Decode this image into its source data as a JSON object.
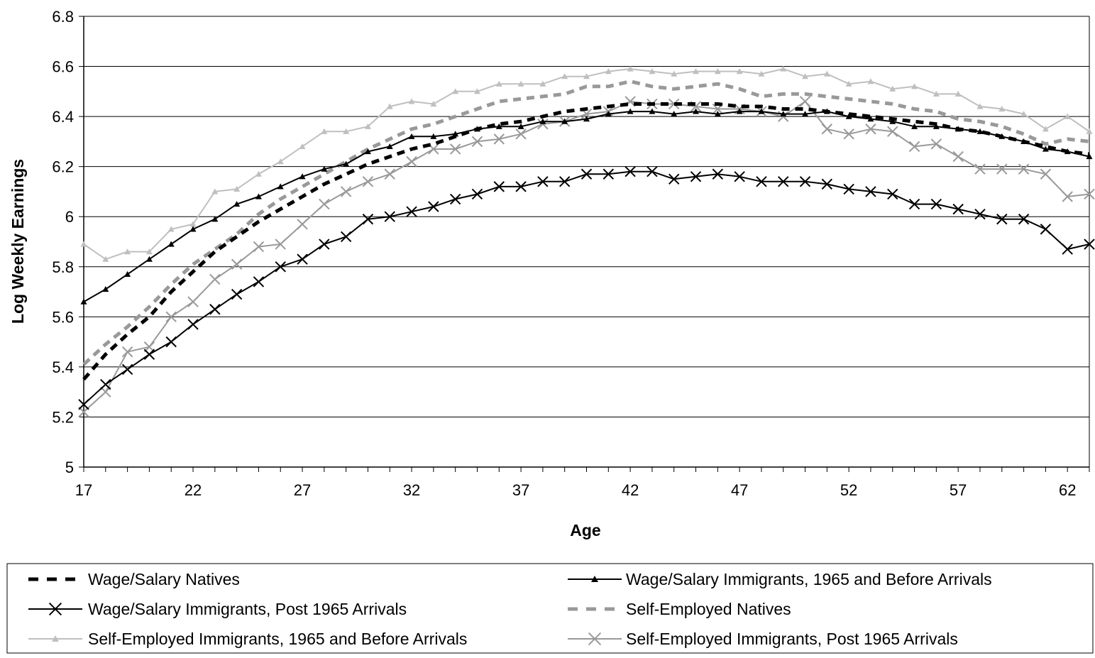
{
  "chart_data": {
    "type": "line",
    "xlabel": "Age",
    "ylabel": "Log Weekly Earnings",
    "xlim": [
      17,
      63
    ],
    "ylim": [
      5,
      6.8
    ],
    "x_ticks": [
      "17",
      "22",
      "27",
      "32",
      "37",
      "42",
      "47",
      "52",
      "57",
      "62"
    ],
    "y_ticks": [
      "5",
      "5.2",
      "5.4",
      "5.6",
      "5.8",
      "6",
      "6.2",
      "6.4",
      "6.6",
      "6.8"
    ],
    "grid": "horizontal",
    "legend": "bottom",
    "x": [
      17,
      18,
      19,
      20,
      21,
      22,
      23,
      24,
      25,
      26,
      27,
      28,
      29,
      30,
      31,
      32,
      33,
      34,
      35,
      36,
      37,
      38,
      39,
      40,
      41,
      42,
      43,
      44,
      45,
      46,
      47,
      48,
      49,
      50,
      51,
      52,
      53,
      54,
      55,
      56,
      57,
      58,
      59,
      60,
      61,
      62,
      63
    ],
    "series": [
      {
        "name": "Wage/Salary Natives",
        "color": "#000000",
        "style": "dashed-bold",
        "marker": "none",
        "values": [
          5.35,
          5.45,
          5.53,
          5.6,
          5.7,
          5.78,
          5.86,
          5.92,
          5.98,
          6.03,
          6.08,
          6.13,
          6.17,
          6.21,
          6.24,
          6.27,
          6.29,
          6.32,
          6.35,
          6.37,
          6.38,
          6.4,
          6.42,
          6.43,
          6.44,
          6.45,
          6.45,
          6.45,
          6.45,
          6.45,
          6.44,
          6.44,
          6.43,
          6.43,
          6.42,
          6.41,
          6.4,
          6.39,
          6.38,
          6.37,
          6.35,
          6.34,
          6.32,
          6.3,
          6.28,
          6.26,
          6.25
        ]
      },
      {
        "name": "Wage/Salary Immigrants, 1965 and Before Arrivals",
        "color": "#000000",
        "style": "solid",
        "marker": "triangle",
        "values": [
          5.66,
          5.71,
          5.77,
          5.83,
          5.89,
          5.95,
          5.99,
          6.05,
          6.08,
          6.12,
          6.16,
          6.19,
          6.21,
          6.26,
          6.28,
          6.32,
          6.32,
          6.33,
          6.35,
          6.36,
          6.36,
          6.38,
          6.38,
          6.39,
          6.41,
          6.42,
          6.42,
          6.41,
          6.42,
          6.41,
          6.42,
          6.42,
          6.41,
          6.41,
          6.42,
          6.4,
          6.39,
          6.38,
          6.36,
          6.36,
          6.35,
          6.34,
          6.32,
          6.3,
          6.27,
          6.26,
          6.24
        ]
      },
      {
        "name": "Wage/Salary Immigrants, Post 1965 Arrivals",
        "color": "#000000",
        "style": "solid",
        "marker": "x",
        "values": [
          5.25,
          5.33,
          5.39,
          5.45,
          5.5,
          5.57,
          5.63,
          5.69,
          5.74,
          5.8,
          5.83,
          5.89,
          5.92,
          5.99,
          6.0,
          6.02,
          6.04,
          6.07,
          6.09,
          6.12,
          6.12,
          6.14,
          6.14,
          6.17,
          6.17,
          6.18,
          6.18,
          6.15,
          6.16,
          6.17,
          6.16,
          6.14,
          6.14,
          6.14,
          6.13,
          6.11,
          6.1,
          6.09,
          6.05,
          6.05,
          6.03,
          6.01,
          5.99,
          5.99,
          5.95,
          5.87,
          5.89
        ]
      },
      {
        "name": "Self-Employed Natives",
        "color": "#999999",
        "style": "dashed-bold",
        "marker": "none",
        "values": [
          5.41,
          5.49,
          5.56,
          5.64,
          5.73,
          5.81,
          5.87,
          5.93,
          6.01,
          6.07,
          6.12,
          6.17,
          6.22,
          6.27,
          6.31,
          6.35,
          6.37,
          6.4,
          6.43,
          6.46,
          6.47,
          6.48,
          6.49,
          6.52,
          6.52,
          6.54,
          6.52,
          6.51,
          6.52,
          6.53,
          6.51,
          6.48,
          6.49,
          6.49,
          6.48,
          6.47,
          6.46,
          6.45,
          6.43,
          6.42,
          6.39,
          6.38,
          6.36,
          6.33,
          6.29,
          6.31,
          6.3
        ]
      },
      {
        "name": "Self-Employed Immigrants, 1965 and Before Arrivals",
        "color": "#bfbfbf",
        "style": "solid",
        "marker": "triangle",
        "values": [
          5.89,
          5.83,
          5.86,
          5.86,
          5.95,
          5.97,
          6.1,
          6.11,
          6.17,
          6.22,
          6.28,
          6.34,
          6.34,
          6.36,
          6.44,
          6.46,
          6.45,
          6.5,
          6.5,
          6.53,
          6.53,
          6.53,
          6.56,
          6.56,
          6.58,
          6.59,
          6.58,
          6.57,
          6.58,
          6.58,
          6.58,
          6.57,
          6.59,
          6.56,
          6.57,
          6.53,
          6.54,
          6.51,
          6.52,
          6.49,
          6.49,
          6.44,
          6.43,
          6.41,
          6.35,
          6.4,
          6.34
        ]
      },
      {
        "name": "Self-Employed Immigrants, Post 1965 Arrivals",
        "color": "#999999",
        "style": "solid",
        "marker": "x",
        "values": [
          5.22,
          5.3,
          5.46,
          5.48,
          5.6,
          5.66,
          5.75,
          5.81,
          5.88,
          5.89,
          5.97,
          6.05,
          6.1,
          6.14,
          6.17,
          6.22,
          6.27,
          6.27,
          6.3,
          6.31,
          6.33,
          6.37,
          6.38,
          6.41,
          6.42,
          6.46,
          6.45,
          6.45,
          6.44,
          6.43,
          6.43,
          6.42,
          6.4,
          6.46,
          6.35,
          6.33,
          6.35,
          6.34,
          6.28,
          6.29,
          6.24,
          6.19,
          6.19,
          6.19,
          6.17,
          6.08,
          6.09
        ]
      }
    ]
  }
}
